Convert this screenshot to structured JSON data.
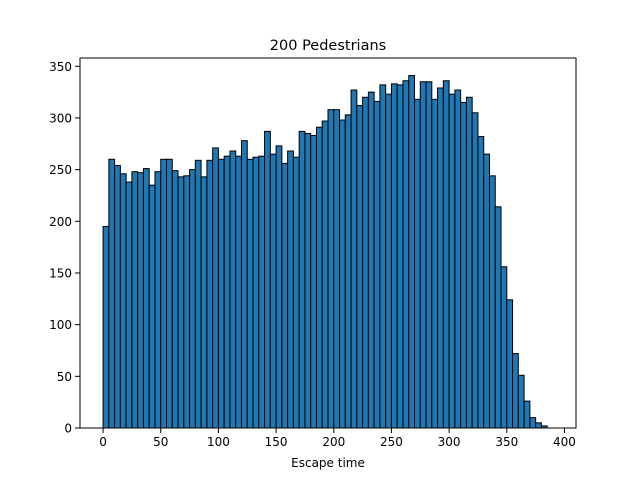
{
  "chart_data": {
    "type": "bar",
    "title": "200 Pedestrians",
    "xlabel": "Escape time",
    "ylabel": "",
    "xlim": [
      -20,
      410
    ],
    "ylim": [
      0,
      358
    ],
    "x_ticks": [
      0,
      50,
      100,
      150,
      200,
      250,
      300,
      350,
      400
    ],
    "y_ticks": [
      0,
      50,
      100,
      150,
      200,
      250,
      300,
      350
    ],
    "bin_start": 0,
    "bin_width": 5.0,
    "values": [
      195,
      260,
      254,
      246,
      238,
      248,
      247,
      251,
      235,
      248,
      260,
      260,
      249,
      243,
      244,
      250,
      259,
      243,
      259,
      271,
      260,
      263,
      268,
      263,
      278,
      260,
      262,
      263,
      287,
      265,
      273,
      256,
      268,
      262,
      287,
      285,
      283,
      291,
      297,
      308,
      308,
      298,
      303,
      327,
      312,
      320,
      325,
      316,
      332,
      323,
      333,
      332,
      336,
      341,
      318,
      335,
      335,
      318,
      329,
      336,
      323,
      327,
      315,
      320,
      305,
      282,
      265,
      244,
      214,
      156,
      124,
      72,
      51,
      26,
      10,
      5,
      2
    ],
    "bar_color": "#1f77b4",
    "edge_color": "#000000",
    "grid": false
  }
}
